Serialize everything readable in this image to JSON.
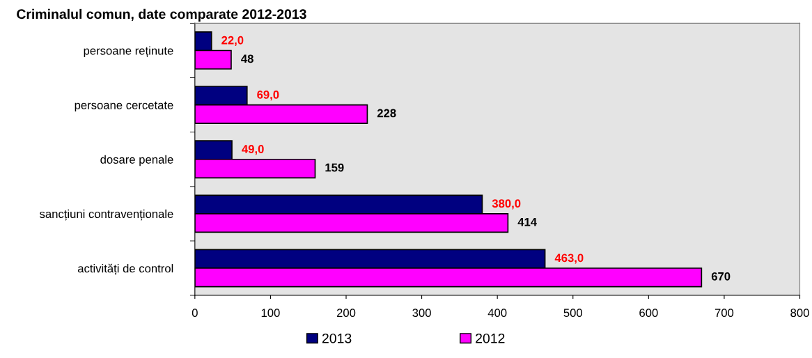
{
  "chart_data": {
    "type": "bar",
    "orientation": "horizontal",
    "title": "Criminalul comun, date comparate 2012-2013",
    "categories": [
      "persoane reținute",
      "persoane cercetate",
      "dosare penale",
      "sancțiuni contravenționale",
      "activități de control"
    ],
    "series": [
      {
        "name": "2013",
        "color": "#000080",
        "values": [
          22,
          69,
          49,
          380,
          463
        ],
        "value_labels": [
          "22,0",
          "69,0",
          "49,0",
          "380,0",
          "463,0"
        ]
      },
      {
        "name": "2012",
        "color": "#ff00ff",
        "values": [
          48,
          228,
          159,
          414,
          670
        ],
        "value_labels": [
          "48",
          "228",
          "159",
          "414",
          "670"
        ]
      }
    ],
    "xlim": [
      0,
      800
    ],
    "xticks": [
      0,
      100,
      200,
      300,
      400,
      500,
      600,
      700,
      800
    ],
    "grid": false,
    "legend": "bottom"
  }
}
